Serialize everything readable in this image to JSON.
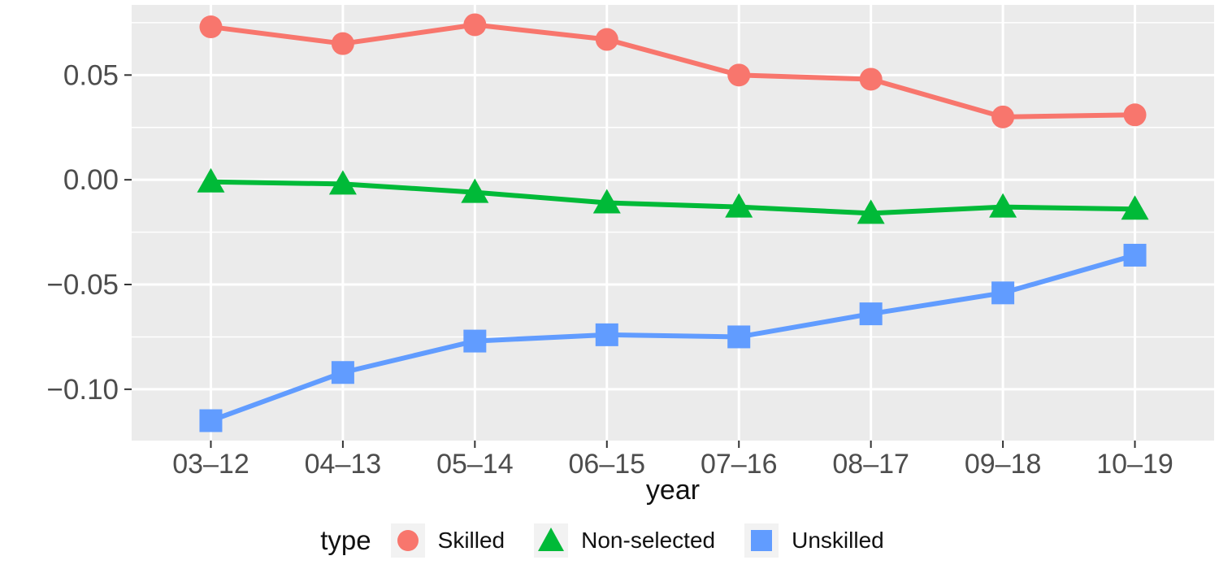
{
  "chart_data": {
    "type": "line",
    "title": "",
    "xlabel": "year",
    "ylabel": "",
    "legend_title": "type",
    "legend_position": "bottom",
    "grid": true,
    "panel_background": "#EBEBEB",
    "gridline_color": "#FFFFFF",
    "tick_color": "#333333",
    "tick_label_color": "#4D4D4D",
    "axis_title_color": "#111111",
    "legend_key_background": "#F2F2F2",
    "categories": [
      "03–12",
      "04–13",
      "05–14",
      "06–15",
      "07–16",
      "08–17",
      "09–18",
      "10–19"
    ],
    "y_ticks": [
      {
        "value": 0.05,
        "label": "0.05"
      },
      {
        "value": 0.0,
        "label": "0.00"
      },
      {
        "value": -0.05,
        "label": "−0.05"
      },
      {
        "value": -0.1,
        "label": "−0.10"
      }
    ],
    "y_minor_ticks": [
      0.075,
      0.025,
      -0.025,
      -0.075,
      -0.125
    ],
    "ylim": [
      -0.1245,
      0.0835
    ],
    "series": [
      {
        "name": "Skilled",
        "marker": "circle",
        "color": "#F8766D",
        "values": [
          0.073,
          0.065,
          0.074,
          0.067,
          0.05,
          0.048,
          0.03,
          0.031
        ]
      },
      {
        "name": "Non-selected",
        "marker": "triangle",
        "color": "#00BA38",
        "values": [
          -0.001,
          -0.002,
          -0.006,
          -0.011,
          -0.013,
          -0.016,
          -0.013,
          -0.014
        ]
      },
      {
        "name": "Unskilled",
        "marker": "square",
        "color": "#619CFF",
        "values": [
          -0.115,
          -0.092,
          -0.077,
          -0.074,
          -0.075,
          -0.064,
          -0.054,
          -0.036
        ]
      }
    ]
  }
}
